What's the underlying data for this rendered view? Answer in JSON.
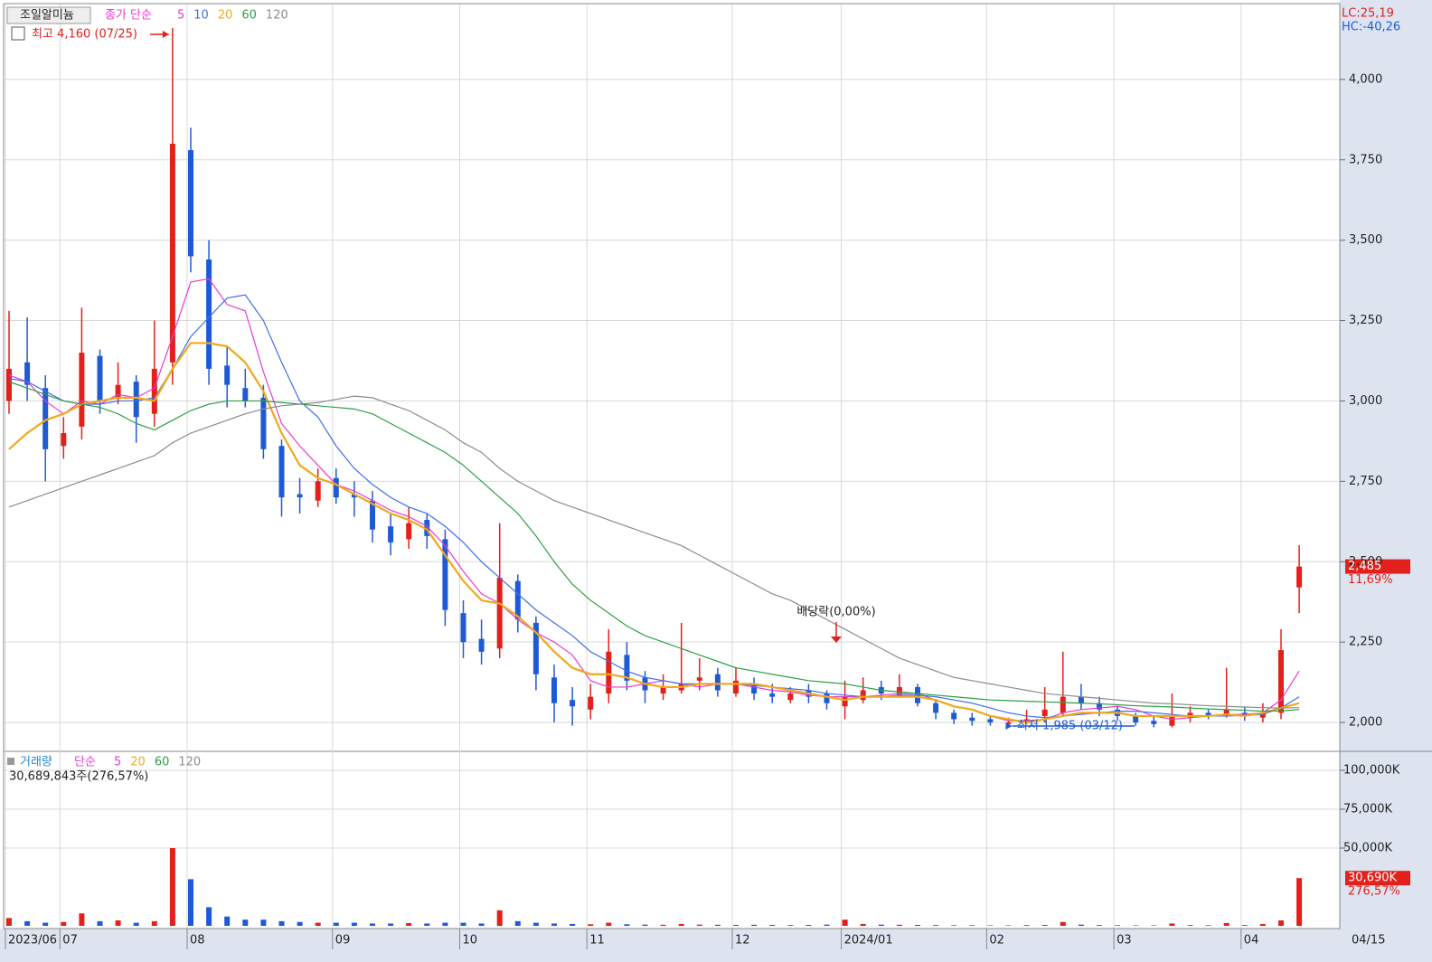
{
  "chart_data": {
    "type": "candlestick",
    "title": "조일알미늄",
    "price_legend": {
      "label": "종가 단순",
      "periods": [
        "5",
        "10",
        "20",
        "60",
        "120"
      ]
    },
    "volume_legend": {
      "label": "거래량",
      "method": "단순",
      "periods": [
        "5",
        "20",
        "60",
        "120"
      ]
    },
    "indicators": {
      "lc": "LC:25,19",
      "hc": "HC:-40,26"
    },
    "annotations": {
      "high": "최고 4,160 (07/25)",
      "low": "최저 1,985 (03/12)",
      "dividend": "배당락(0,00%)",
      "volume_info": "30,689,843주(276,57%)"
    },
    "price_tag": {
      "value": 2485,
      "label": "2,485",
      "change": "11,69%"
    },
    "volume_tag": {
      "value": 30690,
      "label": "30,690K",
      "change": "276,57%"
    },
    "current_date": "04/15",
    "colors": {
      "up": "#e3201b",
      "down": "#1f5ad6"
    },
    "categories": [
      "2023/06",
      null,
      null,
      "07",
      null,
      null,
      null,
      null,
      null,
      null,
      "08",
      null,
      null,
      null,
      null,
      null,
      null,
      null,
      "09",
      null,
      null,
      null,
      null,
      null,
      null,
      "10",
      null,
      null,
      null,
      null,
      null,
      null,
      "11",
      null,
      null,
      null,
      null,
      null,
      null,
      null,
      "12",
      null,
      null,
      null,
      null,
      null,
      "2024/01",
      null,
      null,
      null,
      null,
      null,
      null,
      null,
      "02",
      null,
      null,
      null,
      null,
      null,
      null,
      "03",
      null,
      null,
      null,
      null,
      null,
      null,
      "04",
      null,
      null,
      null
    ],
    "open": [
      3000,
      3120,
      3040,
      2860,
      2920,
      3140,
      3010,
      3060,
      2960,
      3120,
      3780,
      3440,
      3110,
      3040,
      3010,
      2860,
      2710,
      2690,
      2760,
      2710,
      2690,
      2610,
      2570,
      2630,
      2570,
      2340,
      2260,
      2230,
      2440,
      2310,
      2140,
      2070,
      2040,
      2090,
      2210,
      2140,
      2090,
      2100,
      2130,
      2150,
      2090,
      2120,
      2090,
      2070,
      2100,
      2090,
      2050,
      2070,
      2110,
      2080,
      2110,
      2060,
      2030,
      2015,
      2010,
      1995,
      2000,
      2020,
      2030,
      2080,
      2060,
      2040,
      2020,
      2005,
      1990,
      2015,
      2030,
      2025,
      2030,
      2015,
      2030,
      2420
    ],
    "high": [
      3280,
      3260,
      3080,
      2950,
      3290,
      3160,
      3120,
      3080,
      3250,
      4160,
      3850,
      3500,
      3170,
      3100,
      3050,
      2880,
      2760,
      2790,
      2790,
      2750,
      2720,
      2650,
      2670,
      2650,
      2600,
      2380,
      2320,
      2620,
      2460,
      2330,
      2180,
      2110,
      2120,
      2290,
      2250,
      2160,
      2150,
      2310,
      2200,
      2170,
      2170,
      2140,
      2120,
      2110,
      2120,
      2100,
      2130,
      2140,
      2130,
      2150,
      2120,
      2070,
      2040,
      2030,
      2020,
      2015,
      2040,
      2110,
      2220,
      2120,
      2080,
      2050,
      2030,
      2020,
      2090,
      2050,
      2040,
      2170,
      2050,
      2060,
      2290,
      2551
    ],
    "low": [
      2960,
      3000,
      2750,
      2820,
      2880,
      2960,
      2990,
      2870,
      2920,
      3050,
      3400,
      3050,
      2980,
      2980,
      2820,
      2640,
      2650,
      2670,
      2680,
      2640,
      2560,
      2520,
      2540,
      2540,
      2300,
      2200,
      2180,
      2200,
      2280,
      2100,
      2000,
      1990,
      2010,
      2060,
      2100,
      2060,
      2070,
      2090,
      2100,
      2080,
      2080,
      2070,
      2060,
      2060,
      2060,
      2040,
      2010,
      2060,
      2070,
      2080,
      2050,
      2010,
      1995,
      1990,
      1990,
      1985,
      1995,
      2000,
      2020,
      2040,
      2020,
      2005,
      1990,
      1985,
      1985,
      2000,
      2010,
      2015,
      2005,
      2000,
      2010,
      2340
    ],
    "close": [
      3100,
      3050,
      2850,
      2900,
      3150,
      3000,
      3050,
      2950,
      3100,
      3800,
      3450,
      3100,
      3050,
      3000,
      2850,
      2700,
      2700,
      2750,
      2700,
      2700,
      2600,
      2560,
      2620,
      2580,
      2350,
      2250,
      2220,
      2450,
      2320,
      2150,
      2060,
      2050,
      2080,
      2220,
      2130,
      2100,
      2110,
      2120,
      2140,
      2100,
      2130,
      2090,
      2080,
      2090,
      2080,
      2060,
      2080,
      2100,
      2090,
      2110,
      2060,
      2030,
      2010,
      2005,
      2000,
      2000,
      2010,
      2040,
      2080,
      2060,
      2040,
      2020,
      2000,
      1995,
      2020,
      2030,
      2020,
      2040,
      2020,
      2030,
      2225,
      2485
    ],
    "volume": [
      5000,
      3000,
      2000,
      2500,
      8000,
      3000,
      3500,
      2000,
      3000,
      50000,
      30000,
      12000,
      6000,
      4000,
      4000,
      3000,
      2500,
      2000,
      2000,
      2000,
      1500,
      1500,
      1800,
      1500,
      2000,
      2000,
      1500,
      10000,
      3000,
      2000,
      1500,
      1200,
      1000,
      2000,
      1000,
      800,
      700,
      1200,
      800,
      700,
      600,
      700,
      600,
      500,
      600,
      800,
      4000,
      1200,
      800,
      700,
      600,
      500,
      400,
      400,
      300,
      300,
      500,
      600,
      2500,
      800,
      500,
      400,
      300,
      300,
      1500,
      500,
      400,
      1800,
      500,
      1200,
      3500,
      30690
    ],
    "moving_averages": [
      {
        "color": "#e83ad0",
        "values": [
          3080,
          3060,
          3000,
          2960,
          3000,
          2990,
          3020,
          3010,
          3040,
          3200,
          3370,
          3380,
          3300,
          3280,
          3090,
          2930,
          2860,
          2800,
          2740,
          2720,
          2690,
          2660,
          2640,
          2610,
          2550,
          2470,
          2400,
          2370,
          2320,
          2280,
          2250,
          2210,
          2130,
          2110,
          2110,
          2120,
          2130,
          2120,
          2110,
          2120,
          2120,
          2110,
          2100,
          2095,
          2085,
          2080,
          2080,
          2080,
          2085,
          2090,
          2090,
          2070,
          2050,
          2040,
          2020,
          2005,
          2005,
          2010,
          2030,
          2040,
          2045,
          2050,
          2040,
          2020,
          2010,
          2015,
          2020,
          2025,
          2025,
          2030,
          2070,
          2160
        ]
      },
      {
        "color": "#3f6ee8",
        "values": [
          3070,
          3060,
          3030,
          3000,
          2990,
          2990,
          3000,
          3000,
          3010,
          3100,
          3200,
          3260,
          3320,
          3330,
          3250,
          3120,
          3000,
          2950,
          2860,
          2790,
          2740,
          2700,
          2670,
          2650,
          2610,
          2560,
          2500,
          2450,
          2400,
          2350,
          2310,
          2270,
          2220,
          2190,
          2160,
          2140,
          2130,
          2120,
          2120,
          2120,
          2120,
          2115,
          2110,
          2105,
          2100,
          2090,
          2085,
          2080,
          2080,
          2085,
          2085,
          2080,
          2070,
          2060,
          2045,
          2030,
          2020,
          2015,
          2020,
          2025,
          2030,
          2035,
          2035,
          2030,
          2025,
          2020,
          2020,
          2020,
          2022,
          2025,
          2045,
          2080
        ]
      },
      {
        "color": "#f0a81c",
        "values": [
          2850,
          2900,
          2940,
          2960,
          2990,
          3000,
          3010,
          3010,
          3000,
          3100,
          3180,
          3180,
          3170,
          3120,
          3030,
          2900,
          2800,
          2760,
          2740,
          2710,
          2680,
          2650,
          2630,
          2600,
          2520,
          2440,
          2380,
          2370,
          2330,
          2280,
          2220,
          2170,
          2150,
          2150,
          2140,
          2120,
          2110,
          2110,
          2120,
          2120,
          2120,
          2120,
          2110,
          2100,
          2090,
          2080,
          2070,
          2080,
          2080,
          2080,
          2080,
          2070,
          2050,
          2040,
          2020,
          2010,
          2000,
          2010,
          2020,
          2030,
          2030,
          2030,
          2020,
          2020,
          2020,
          2020,
          2020,
          2025,
          2020,
          2030,
          2045,
          2060
        ]
      },
      {
        "color": "#2ea043",
        "values": [
          3060,
          3040,
          3020,
          3000,
          2990,
          2980,
          2960,
          2930,
          2910,
          2940,
          2970,
          2990,
          3000,
          3000,
          3000,
          2995,
          2990,
          2985,
          2980,
          2975,
          2960,
          2930,
          2900,
          2870,
          2840,
          2800,
          2750,
          2700,
          2650,
          2580,
          2500,
          2430,
          2380,
          2340,
          2300,
          2270,
          2250,
          2230,
          2210,
          2190,
          2170,
          2160,
          2150,
          2140,
          2130,
          2125,
          2120,
          2110,
          2100,
          2095,
          2090,
          2085,
          2080,
          2075,
          2070,
          2068,
          2066,
          2064,
          2062,
          2060,
          2058,
          2055,
          2052,
          2050,
          2048,
          2045,
          2042,
          2040,
          2038,
          2035,
          2036,
          2040
        ]
      },
      {
        "color": "#8c8c8c",
        "values": [
          2670,
          2690,
          2710,
          2730,
          2750,
          2770,
          2790,
          2810,
          2830,
          2870,
          2900,
          2920,
          2940,
          2960,
          2975,
          2985,
          2990,
          2995,
          3005,
          3015,
          3010,
          2990,
          2970,
          2940,
          2910,
          2870,
          2840,
          2790,
          2750,
          2720,
          2690,
          2670,
          2650,
          2630,
          2610,
          2590,
          2570,
          2550,
          2520,
          2490,
          2460,
          2430,
          2400,
          2380,
          2350,
          2320,
          2290,
          2260,
          2230,
          2200,
          2180,
          2160,
          2140,
          2130,
          2120,
          2110,
          2100,
          2090,
          2085,
          2080,
          2075,
          2070,
          2065,
          2060,
          2058,
          2055,
          2052,
          2050,
          2048,
          2046,
          2045,
          2046
        ]
      }
    ],
    "volume_legend_colors": [
      "#e83ad0",
      "#f0a81c",
      "#2ea043",
      "#8c8c8c"
    ],
    "ylim": [
      1913,
      4233
    ],
    "yticks": [
      {
        "value": 2000,
        "label": "2,000"
      },
      {
        "value": 2250,
        "label": "2,250"
      },
      {
        "value": 2500,
        "label": "2,500"
      },
      {
        "value": 2750,
        "label": "2,750"
      },
      {
        "value": 3000,
        "label": "3,000"
      },
      {
        "value": 3250,
        "label": "3,250"
      },
      {
        "value": 3500,
        "label": "3,500"
      },
      {
        "value": 3750,
        "label": "3,750"
      },
      {
        "value": 4000,
        "label": "4,000"
      }
    ],
    "volume_ylim": [
      -1160,
      111630
    ],
    "volume_yticks": [
      {
        "value": 50000,
        "label": "50,000K"
      },
      {
        "value": 75000,
        "label": "75,000K"
      },
      {
        "value": 100000,
        "label": "100,000K"
      }
    ],
    "grid": true
  }
}
